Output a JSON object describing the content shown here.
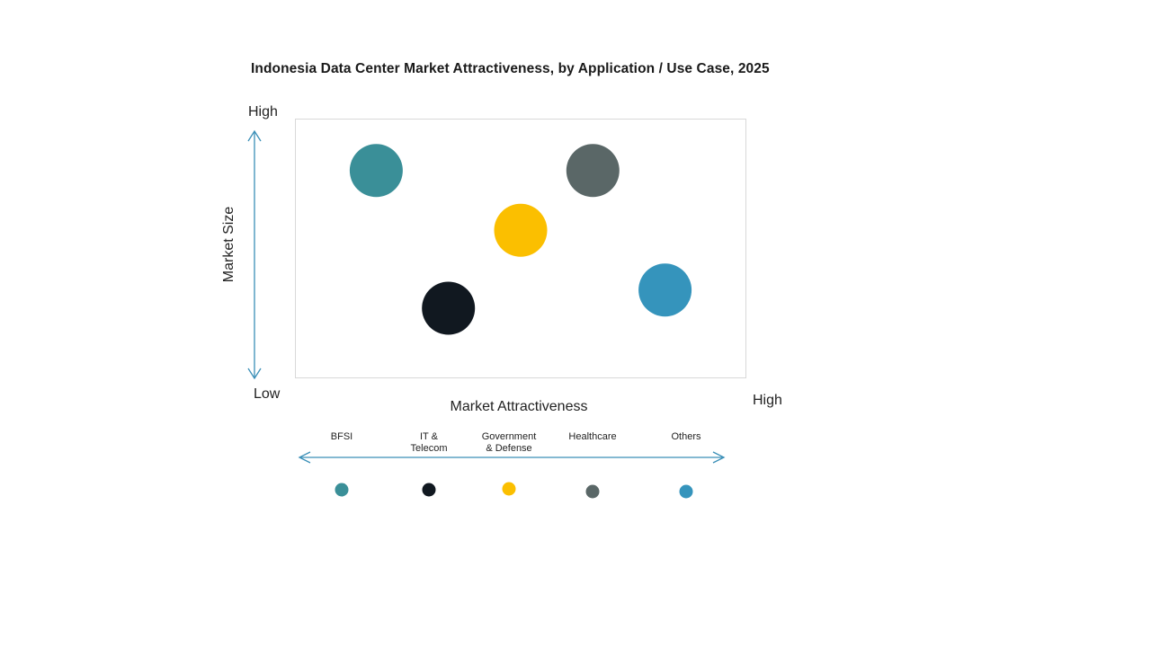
{
  "chart_data": {
    "type": "scatter",
    "title": "Indonesia Data Center Market Attractiveness,  by Application / Use Case, 2025",
    "xlabel": "Market Attractiveness",
    "ylabel": "Market Size",
    "x_low_label": "Low",
    "x_high_label": "High",
    "y_high_label": "High",
    "xlim": [
      0,
      100
    ],
    "ylim": [
      0,
      100
    ],
    "grid": false,
    "legend_position": "bottom",
    "series": [
      {
        "name": "BFSI",
        "x": 18,
        "y": 80,
        "color": "#3a8f98"
      },
      {
        "name": "IT & Telecom",
        "x": 34,
        "y": 27,
        "color": "#111820"
      },
      {
        "name": "Government & Defense",
        "x": 50,
        "y": 57,
        "color": "#fbbf00"
      },
      {
        "name": "Healthcare",
        "x": 66,
        "y": 80,
        "color": "#5a6767"
      },
      {
        "name": "Others",
        "x": 82,
        "y": 34,
        "color": "#3594bc"
      }
    ]
  },
  "legend": {
    "labels": [
      "BFSI",
      "IT &\nTelecom",
      "Government\n& Defense",
      "Healthcare",
      "Others"
    ]
  },
  "colors": {
    "axis_arrow": "#3a8fb7",
    "plot_border": "#d9d9d9"
  }
}
